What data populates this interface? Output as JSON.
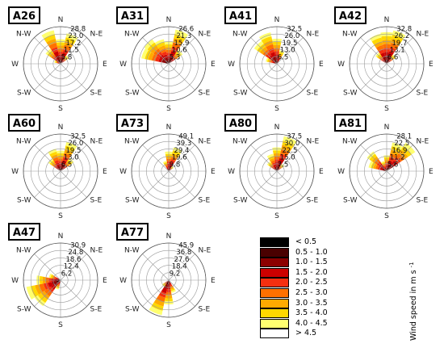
{
  "chart_data": {
    "type": "polar-windrose",
    "directions": [
      "N",
      "N-E",
      "E",
      "S-E",
      "S",
      "S-W",
      "W",
      "N-W"
    ],
    "legend": {
      "title": "Wind speed in m s",
      "title_sup": "-1",
      "bins": [
        {
          "label": "< 0.5",
          "color": "#000000"
        },
        {
          "label": "0.5 - 1.0",
          "color": "#4a0000"
        },
        {
          "label": "1.0 - 1.5",
          "color": "#8c0000"
        },
        {
          "label": "1.5 - 2.0",
          "color": "#cc0000"
        },
        {
          "label": "2.0 - 2.5",
          "color": "#f52f10"
        },
        {
          "label": "2.5 - 3.0",
          "color": "#ff7000"
        },
        {
          "label": "3.0 - 3.5",
          "color": "#ffaa00"
        },
        {
          "label": "3.5 - 4.0",
          "color": "#ffd800"
        },
        {
          "label": "4.0 - 4.5",
          "color": "#ffff70"
        },
        {
          "label": "> 4.5",
          "color": "#ffffff"
        }
      ]
    },
    "panels": [
      {
        "name": "A26",
        "ticks": [
          "28.8",
          "23.0",
          "17.2",
          "11.5",
          "5.8"
        ],
        "max": 28.8,
        "sectors": [
          {
            "deg": 0,
            "value": 19.0
          },
          {
            "deg": 22.5,
            "value": 24.0
          },
          {
            "deg": 337.5,
            "value": 26.5
          },
          {
            "deg": 315,
            "value": 14.0
          },
          {
            "deg": 45,
            "value": 8.0
          },
          {
            "deg": 292.5,
            "value": 5.0
          }
        ]
      },
      {
        "name": "A31",
        "ticks": [
          "26.6",
          "21.3",
          "15.9",
          "10.6",
          "5.3"
        ],
        "max": 26.6,
        "sectors": [
          {
            "deg": 0,
            "value": 16.0
          },
          {
            "deg": 22.5,
            "value": 25.0
          },
          {
            "deg": 337.5,
            "value": 18.0
          },
          {
            "deg": 315,
            "value": 21.0
          },
          {
            "deg": 292.5,
            "value": 20.0
          },
          {
            "deg": 45,
            "value": 12.0
          }
        ]
      },
      {
        "name": "A41",
        "ticks": [
          "32.5",
          "26.0",
          "19.5",
          "13.0",
          "6.5"
        ],
        "max": 32.5,
        "sectors": [
          {
            "deg": 0,
            "value": 22.0
          },
          {
            "deg": 337.5,
            "value": 28.0
          },
          {
            "deg": 315,
            "value": 24.0
          },
          {
            "deg": 292.5,
            "value": 10.0
          },
          {
            "deg": 22.5,
            "value": 12.0
          }
        ]
      },
      {
        "name": "A42",
        "ticks": [
          "32.8",
          "26.2",
          "19.7",
          "13.1",
          "6.6"
        ],
        "max": 32.8,
        "sectors": [
          {
            "deg": 0,
            "value": 28.0
          },
          {
            "deg": 22.5,
            "value": 30.0
          },
          {
            "deg": 337.5,
            "value": 27.0
          },
          {
            "deg": 315,
            "value": 12.0
          },
          {
            "deg": 45,
            "value": 10.0
          }
        ]
      },
      {
        "name": "A60",
        "ticks": [
          "32.5",
          "26.0",
          "19.5",
          "13.0",
          "6.5"
        ],
        "max": 32.5,
        "sectors": [
          {
            "deg": 0,
            "value": 18.0
          },
          {
            "deg": 22.5,
            "value": 26.0
          },
          {
            "deg": 337.5,
            "value": 20.0
          },
          {
            "deg": 315,
            "value": 13.0
          },
          {
            "deg": 45,
            "value": 14.0
          }
        ]
      },
      {
        "name": "A73",
        "ticks": [
          "49.1",
          "39.3",
          "29.4",
          "19.6",
          "9.8"
        ],
        "max": 49.1,
        "sectors": [
          {
            "deg": 0,
            "value": 26.0
          },
          {
            "deg": 22.5,
            "value": 32.0
          },
          {
            "deg": 337.5,
            "value": 14.0
          },
          {
            "deg": 45,
            "value": 8.0
          }
        ]
      },
      {
        "name": "A80",
        "ticks": [
          "37.5",
          "30.0",
          "22.5",
          "15.0",
          "7.5"
        ],
        "max": 37.5,
        "sectors": [
          {
            "deg": 0,
            "value": 24.0
          },
          {
            "deg": 22.5,
            "value": 36.0
          },
          {
            "deg": 337.5,
            "value": 18.0
          },
          {
            "deg": 315,
            "value": 12.0
          },
          {
            "deg": 45,
            "value": 9.0
          }
        ]
      },
      {
        "name": "A81",
        "ticks": [
          "28.1",
          "22.5",
          "16.9",
          "11.2",
          "5.6"
        ],
        "max": 28.1,
        "sectors": [
          {
            "deg": 0,
            "value": 12.0
          },
          {
            "deg": 22.5,
            "value": 22.0
          },
          {
            "deg": 45,
            "value": 26.0
          },
          {
            "deg": 315,
            "value": 18.0
          },
          {
            "deg": 292.5,
            "value": 14.0
          },
          {
            "deg": 337.5,
            "value": 8.0
          }
        ]
      },
      {
        "name": "A47",
        "ticks": [
          "30.9",
          "24.8",
          "18.6",
          "12.4",
          "6.2"
        ],
        "max": 30.9,
        "sectors": [
          {
            "deg": 247.5,
            "value": 29.0
          },
          {
            "deg": 225,
            "value": 26.0
          },
          {
            "deg": 270,
            "value": 20.0
          },
          {
            "deg": 292.5,
            "value": 10.0
          },
          {
            "deg": 202.5,
            "value": 8.0
          }
        ]
      },
      {
        "name": "A77",
        "ticks": [
          "45.9",
          "36.8",
          "27.6",
          "18.4",
          "9.2"
        ],
        "max": 45.9,
        "sectors": [
          {
            "deg": 180,
            "value": 30.0
          },
          {
            "deg": 202.5,
            "value": 44.0
          },
          {
            "deg": 157.5,
            "value": 16.0
          },
          {
            "deg": 225,
            "value": 10.0
          }
        ]
      }
    ]
  }
}
